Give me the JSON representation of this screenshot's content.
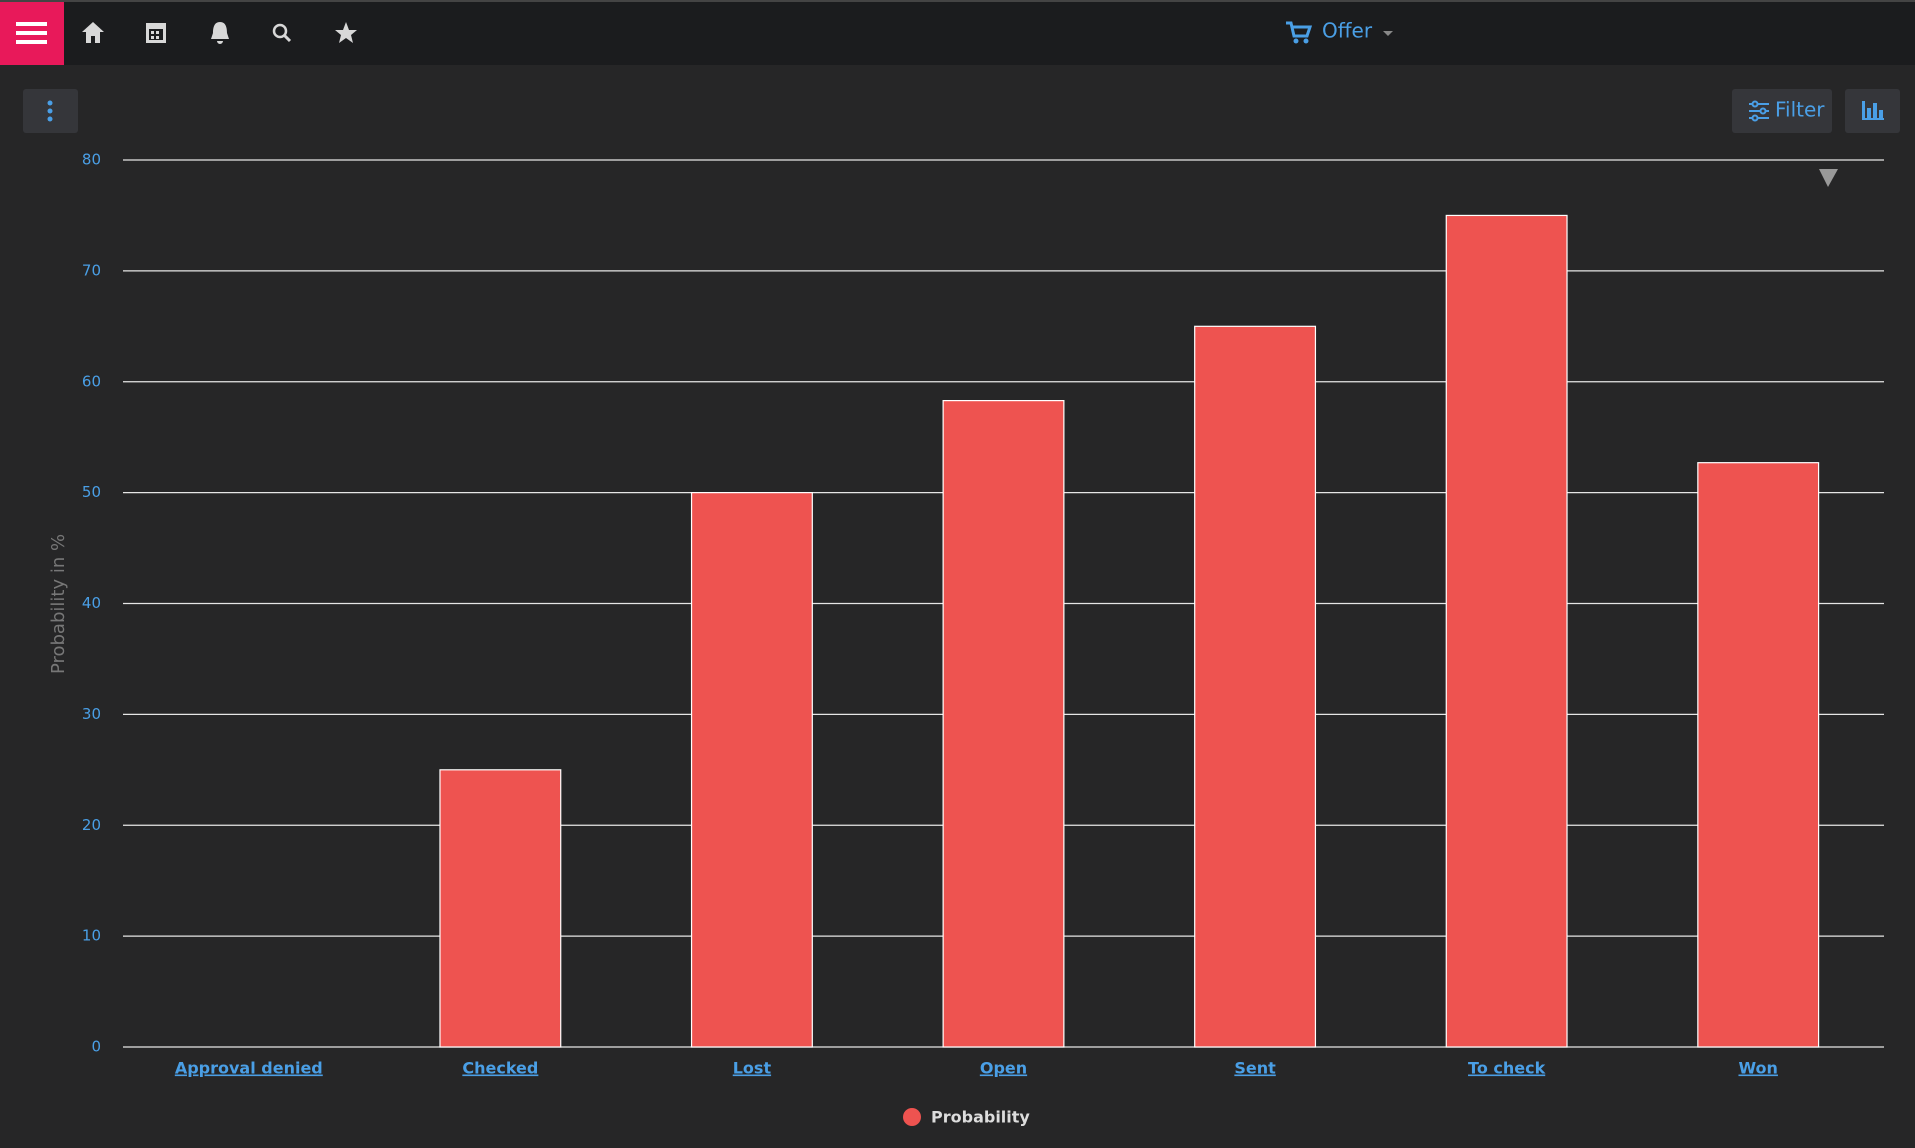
{
  "ui": {
    "nav_title": "Offer",
    "filter_label": "Filter"
  },
  "chart_data": {
    "type": "bar",
    "y_label": "Probability in %",
    "categories": [
      "Approval denied",
      "Checked",
      "Lost",
      "Open",
      "Sent",
      "To check",
      "Won"
    ],
    "series": [
      {
        "name": "Probability",
        "color": "#ee5350",
        "values": [
          0,
          25,
          50,
          58.3,
          65,
          75,
          52.7
        ]
      }
    ],
    "ylim": [
      0,
      80
    ],
    "yticks": [
      0,
      10,
      20,
      30,
      40,
      50,
      60,
      70,
      80
    ],
    "grid": true,
    "legend": "bottom"
  }
}
